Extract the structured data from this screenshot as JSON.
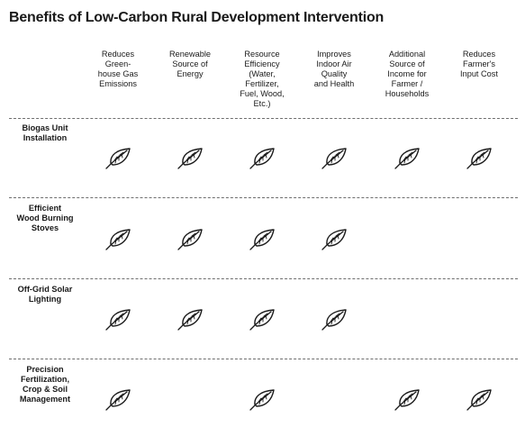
{
  "title": "Benefits of Low-Carbon Rural Development Intervention",
  "columns": [
    {
      "label": "Reduces\nGreen-\nhouse Gas\nEmissions"
    },
    {
      "label": "Renewable\nSource of\nEnergy"
    },
    {
      "label": "Resource\nEfficiency\n(Water,\nFertilizer,\nFuel, Wood,\nEtc.)"
    },
    {
      "label": "Improves\nIndoor Air\nQuality\nand Health"
    },
    {
      "label": "Additional\nSource of\nIncome for\nFarmer /\nHouseholds"
    },
    {
      "label": "Reduces\nFarmer's\nInput Cost"
    }
  ],
  "rows": [
    {
      "label": "Biogas Unit\nInstallation",
      "benefits": [
        true,
        true,
        true,
        true,
        true,
        true
      ]
    },
    {
      "label": "Efficient\nWood Burning\nStoves",
      "benefits": [
        true,
        true,
        true,
        true,
        false,
        false
      ]
    },
    {
      "label": "Off-Grid Solar\nLighting",
      "benefits": [
        true,
        true,
        true,
        true,
        false,
        false
      ]
    },
    {
      "label": "Precision\nFertilization,\nCrop & Soil\nManagement",
      "benefits": [
        true,
        false,
        true,
        false,
        true,
        true
      ]
    }
  ],
  "icon": "leaf-icon",
  "colors": {
    "ink": "#1a1a1a",
    "divider": "#6e6e6e"
  }
}
